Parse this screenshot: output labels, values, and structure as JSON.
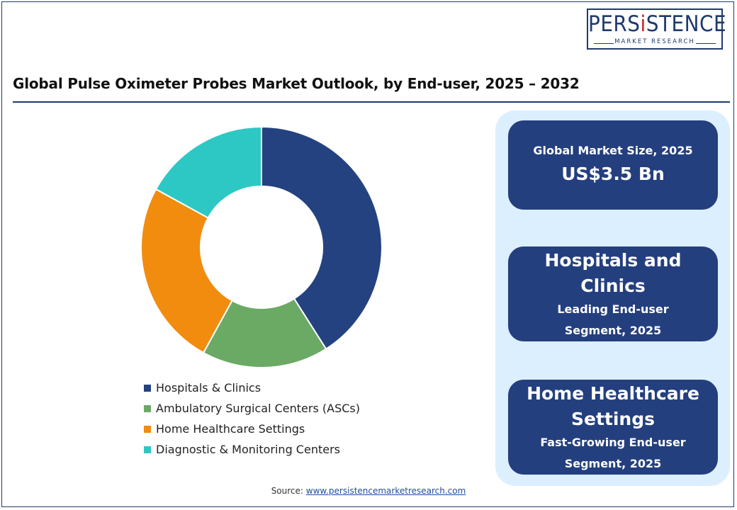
{
  "logo": {
    "brand_prefix": "PERS",
    "brand_i": "i",
    "brand_suffix": "STENCE",
    "tagline": "MARKET RESEARCH"
  },
  "title": "Global Pulse Oximeter Probes Market Outlook, by End-user, 2025 – 2032",
  "chart_data": {
    "type": "pie",
    "donut": true,
    "categories": [
      "Hospitals & Clinics",
      "Ambulatory Surgical Centers (ASCs)",
      "Home Healthcare Settings",
      "Diagnostic & Monitoring Centers"
    ],
    "values": [
      41,
      17,
      25,
      17
    ],
    "colors": [
      "#24427f",
      "#6aaa64",
      "#f18c0f",
      "#2ec8c4"
    ],
    "legend_position": "bottom"
  },
  "cards": [
    {
      "line1": "Global Market Size, 2025",
      "line2": "US$3.5 Bn"
    },
    {
      "line1": "Hospitals and",
      "line2": "Clinics",
      "line3": "Leading End-user",
      "line4": "Segment, 2025"
    },
    {
      "line1": "Home Healthcare",
      "line2": "Settings",
      "line3": "Fast-Growing End-user",
      "line4": "Segment, 2025"
    }
  ],
  "source": {
    "label": "Source: ",
    "link": "www.persistencemarketresearch.com"
  }
}
